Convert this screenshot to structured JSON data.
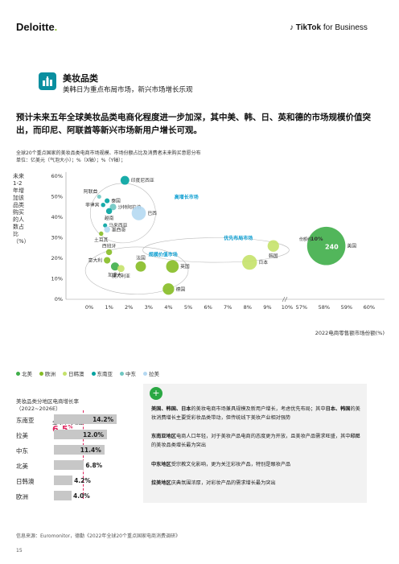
{
  "header": {
    "brand_left": "Deloitte",
    "brand_left_dot": ".",
    "brand_right_bold": "TikTok",
    "brand_right_rest": " for Business"
  },
  "section": {
    "icon": "cosmetics-icon",
    "title": "美妆品类",
    "subtitle": "美韩日为重点布局市场，新兴市场增长乐观"
  },
  "headline": "预计未来五年全球美妆品类电商化程度进一步加深，其中美、韩、日、英和德的市场规模价值突出，而印尼、阿联酋等新兴市场新用户增长可观。",
  "caption_line1": "全球20个重点国家的美妆品类电商市场规模、市场份额占比及消费者未来购买意愿分布",
  "caption_line2": "单位：亿美元（气泡大小）；%（X轴）；%（Y轴）；",
  "chart_data": {
    "type": "scatter",
    "ylabel": "未来1-2年增加该品类购买的人数占比（%）",
    "xlabel": "2022电商零售额市场份额(%)",
    "x_ticks": [
      "0%",
      "1%",
      "2%",
      "3%",
      "4%",
      "5%",
      "6%",
      "7%",
      "8%",
      "9%",
      "10%",
      "57%",
      "58%",
      "59%",
      "60%"
    ],
    "y_ticks": [
      "0%",
      "10%",
      "20%",
      "30%",
      "40%",
      "50%",
      "60%"
    ],
    "ylim": [
      0,
      60
    ],
    "axis_break": "between 10% and 57%",
    "grid": false,
    "legend_position": "bottom-left",
    "legend": [
      {
        "name": "北美",
        "color": "#3fae49"
      },
      {
        "name": "欧洲",
        "color": "#86bc25"
      },
      {
        "name": "日韩澳",
        "color": "#c5e26a"
      },
      {
        "name": "东南亚",
        "color": "#00a3a0"
      },
      {
        "name": "中东",
        "color": "#6fc7c2"
      },
      {
        "name": "拉美",
        "color": "#b5d9f2"
      }
    ],
    "cluster_labels": [
      "高增长市场",
      "优先布局市场",
      "规模价值市场"
    ],
    "points": [
      {
        "name": "印度尼西亚",
        "x": 1.8,
        "y": 58,
        "region": "东南亚"
      },
      {
        "name": "阿联酋",
        "x": 0.5,
        "y": 50,
        "region": "中东"
      },
      {
        "name": "泰国",
        "x": 0.9,
        "y": 48,
        "region": "东南亚"
      },
      {
        "name": "菲律宾",
        "x": 0.7,
        "y": 46,
        "region": "东南亚"
      },
      {
        "name": "沙特阿拉伯",
        "x": 1.2,
        "y": 45,
        "region": "中东"
      },
      {
        "name": "越南",
        "x": 1.0,
        "y": 43,
        "region": "东南亚"
      },
      {
        "name": "巴西",
        "x": 2.5,
        "y": 42,
        "region": "拉美"
      },
      {
        "name": "马来西亚",
        "x": 0.8,
        "y": 36,
        "region": "东南亚"
      },
      {
        "name": "墨西哥",
        "x": 0.9,
        "y": 34,
        "region": "拉美"
      },
      {
        "name": "土耳其",
        "x": 0.6,
        "y": 32,
        "region": "欧洲"
      },
      {
        "name": "西班牙",
        "x": 1.0,
        "y": 23,
        "region": "欧洲"
      },
      {
        "name": "意大利",
        "x": 0.9,
        "y": 19,
        "region": "欧洲"
      },
      {
        "name": "加拿大",
        "x": 1.3,
        "y": 16,
        "region": "北美"
      },
      {
        "name": "法国",
        "x": 2.6,
        "y": 16,
        "region": "欧洲"
      },
      {
        "name": "澳大利亚",
        "x": 1.6,
        "y": 15,
        "region": "日韩澳"
      },
      {
        "name": "英国",
        "x": 4.2,
        "y": 16,
        "region": "欧洲"
      },
      {
        "name": "德国",
        "x": 4.0,
        "y": 5,
        "region": "欧洲"
      },
      {
        "name": "日本",
        "x": 8.1,
        "y": 18,
        "region": "日韩澳"
      },
      {
        "name": "韩国",
        "x": 9.3,
        "y": 26,
        "region": "日韩澳"
      },
      {
        "name": "美国",
        "x": 58.1,
        "y": 26,
        "region": "北美"
      }
    ],
    "annotations": [
      {
        "text": "份额约",
        "value": "56%"
      },
      {
        "text": "份额约",
        "value": "10%"
      },
      {
        "text": "240"
      }
    ]
  },
  "growth": {
    "title1": "美妆品类分地区电商增长率",
    "title2": "（2022~2026E）",
    "avg_label": "全球平均增速",
    "avg_value": "6.5",
    "avg_unit": "%",
    "chart_data": {
      "type": "bar",
      "orientation": "horizontal",
      "categories": [
        "东南亚",
        "拉美",
        "中东",
        "北美",
        "日韩澳",
        "欧洲"
      ],
      "values": [
        14.2,
        12.0,
        11.4,
        6.8,
        4.2,
        4.0
      ],
      "labels": [
        "14.2%",
        "12.0%",
        "11.4%",
        "6.8%",
        "4.2%",
        "4.0%"
      ],
      "reference_line": 6.5
    }
  },
  "insights": {
    "icon": "plus-icon",
    "p1_bold1": "美国、韩国、日本",
    "p1_text1": "的美妆电商市场兼具规模及新用户增长，考虑优先布局；其中",
    "p1_bold2": "日本、韩国",
    "p1_text2": "的美妆消费增长主要受彩妆品类带动，但传统线下美妆产业相对强势",
    "p2_bold": "东南亚地区",
    "p2_text1": "电商人口年轻，对于美妆产品电商的态度更为开放，且美妆产品需求旺盛，其中",
    "p2_bold2": "印尼",
    "p2_text2": "的美妆品类增长最为突出",
    "p3_bold": "中东地区",
    "p3_text": "受宗教文化影响，更为关注彩妆产品，特别是眼妆产品",
    "p4_bold": "拉美地区",
    "p4_text": "庆典氛围浓厚，对彩妆产品的需求增长最为突出"
  },
  "source": "信息来源：Euromonitor，德勤《2022年全球20个重点国家电商消费调研》",
  "page_number": "15"
}
